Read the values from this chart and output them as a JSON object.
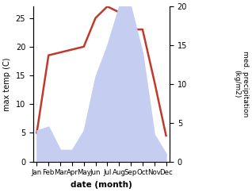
{
  "months": [
    "Jan",
    "Feb",
    "Mar",
    "Apr",
    "May",
    "Jun",
    "Jul",
    "Aug",
    "Sep",
    "Oct",
    "Nov",
    "Dec"
  ],
  "month_positions": [
    0,
    1,
    2,
    3,
    4,
    5,
    6,
    7,
    8,
    9,
    10,
    11
  ],
  "temperature": [
    5.0,
    18.5,
    19.0,
    19.5,
    20.0,
    25.0,
    27.0,
    26.0,
    23.0,
    23.0,
    14.0,
    4.5
  ],
  "precipitation": [
    4.0,
    4.5,
    1.5,
    1.5,
    4.0,
    11.0,
    15.0,
    20.0,
    20.0,
    14.0,
    3.5,
    1.0
  ],
  "temp_color": "#c0392b",
  "precip_fill_color": "#c5cdf0",
  "temp_ylim": [
    0,
    27
  ],
  "precip_ylim": [
    0,
    20
  ],
  "temp_yticks": [
    0,
    5,
    10,
    15,
    20,
    25
  ],
  "precip_yticks": [
    0,
    5,
    10,
    15,
    20
  ],
  "xlabel": "date (month)",
  "ylabel_left": "max temp (C)",
  "ylabel_right": "med. precipitation\n(kg/m2)",
  "figsize": [
    3.18,
    2.42
  ],
  "dpi": 100
}
